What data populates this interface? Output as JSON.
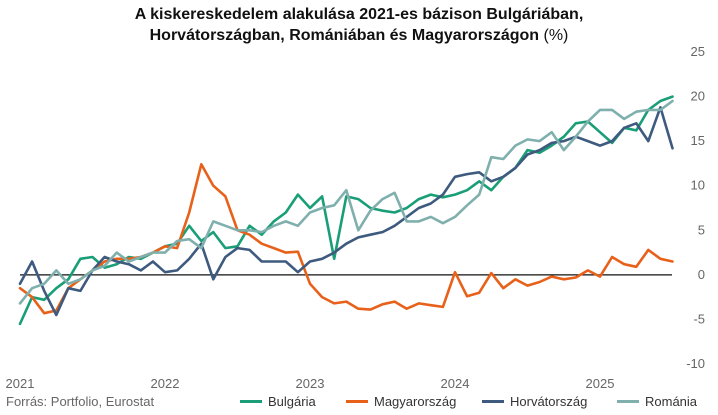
{
  "title_line1": "A kiskereskedelem alakulása 2021-es bázison Bulgáriában,",
  "title_line2": "Horvátországban, Romániában és Magyarországon",
  "title_unit": "(%)",
  "source": "Forrás: Portfolio, Eurostat",
  "chart_data": {
    "type": "line",
    "y_ticks": [
      "25",
      "20",
      "15",
      "10",
      "5",
      "0",
      "-5",
      "-10"
    ],
    "x_ticks": [
      "2021",
      "2022",
      "2023",
      "2024",
      "2025"
    ],
    "ylim": [
      -10,
      25
    ],
    "grid": false,
    "zero_line": true,
    "legend_position": "bottom",
    "colors": {
      "Bulgária": "#1a9e77",
      "Magyarország": "#e8611a",
      "Horvátország": "#3e5a7e",
      "Románia": "#7fb0ad"
    },
    "series": [
      {
        "name": "Bulgária",
        "values": [
          -5.5,
          -2.5,
          -2.8,
          -1.5,
          -0.5,
          1.8,
          2.0,
          0.8,
          1.2,
          2.0,
          1.8,
          2.5,
          3.2,
          3.5,
          5.5,
          3.8,
          4.8,
          3.0,
          3.2,
          5.5,
          4.5,
          6.0,
          7.0,
          9.0,
          7.5,
          8.8,
          1.8,
          8.8,
          8.5,
          7.5,
          7.2,
          7.0,
          7.5,
          8.5,
          9.0,
          8.7,
          9.0,
          9.5,
          10.5,
          9.5,
          11.0,
          12.0,
          14.0,
          13.7,
          14.5,
          15.5,
          17.0,
          17.2,
          16.0,
          14.8,
          16.5,
          16.2,
          18.5,
          19.5,
          20.0
        ]
      },
      {
        "name": "Magyarország",
        "values": [
          -1.5,
          -2.5,
          -4.3,
          -4.0,
          -1.5,
          -0.5,
          0.5,
          1.5,
          1.8,
          1.8,
          2.0,
          2.5,
          3.2,
          3.0,
          7.0,
          12.4,
          10.0,
          8.8,
          5.0,
          4.5,
          3.5,
          3.0,
          2.5,
          2.6,
          -1.0,
          -2.5,
          -3.2,
          -3.0,
          -3.8,
          -3.9,
          -3.3,
          -3.0,
          -3.8,
          -3.2,
          -3.4,
          -3.6,
          0.3,
          -2.4,
          -2.0,
          0.2,
          -1.5,
          -0.5,
          -1.2,
          -0.8,
          -0.2,
          -0.5,
          -0.3,
          0.5,
          -0.2,
          2.0,
          1.2,
          0.9,
          2.8,
          1.8,
          1.5
        ]
      },
      {
        "name": "Horvátország",
        "values": [
          -1.0,
          1.5,
          -1.8,
          -4.5,
          -1.5,
          -1.8,
          0.5,
          2.0,
          1.5,
          1.2,
          0.5,
          1.5,
          0.3,
          0.5,
          1.8,
          3.5,
          -0.5,
          2.0,
          3.0,
          2.8,
          1.5,
          1.5,
          1.5,
          0.3,
          1.5,
          1.8,
          2.5,
          3.5,
          4.2,
          4.5,
          4.8,
          5.5,
          6.5,
          7.5,
          8.0,
          9.0,
          11.0,
          11.3,
          11.5,
          10.5,
          11.0,
          12.0,
          13.5,
          14.0,
          14.8,
          15.0,
          15.5,
          15.0,
          14.5,
          15.0,
          16.5,
          17.0,
          15.0,
          18.8,
          14.2
        ]
      },
      {
        "name": "Románia",
        "values": [
          -3.2,
          -1.5,
          -1.0,
          0.5,
          -1.0,
          -0.5,
          0.5,
          1.0,
          2.5,
          1.5,
          2.0,
          2.5,
          2.5,
          3.8,
          4.0,
          3.0,
          6.0,
          5.5,
          5.0,
          5.0,
          4.8,
          5.5,
          6.0,
          5.5,
          7.0,
          7.5,
          7.8,
          9.5,
          5.0,
          7.2,
          8.5,
          9.2,
          6.0,
          6.0,
          6.5,
          5.8,
          6.5,
          7.8,
          9.0,
          13.2,
          13.0,
          14.5,
          15.2,
          15.0,
          16.0,
          14.0,
          15.5,
          17.2,
          18.5,
          18.5,
          17.5,
          18.3,
          18.5,
          18.5,
          19.5
        ]
      }
    ]
  }
}
